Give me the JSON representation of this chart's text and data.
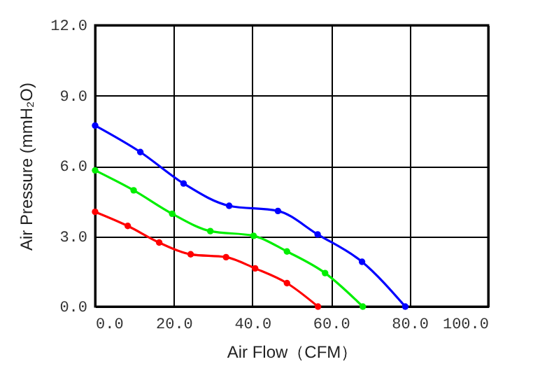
{
  "chart_data": {
    "type": "line",
    "xlabel": "Air Flow（CFM）",
    "ylabel": "Air Pressure (mmH₂O)",
    "xlim": [
      0,
      100
    ],
    "ylim": [
      0,
      12
    ],
    "xticks": [
      {
        "value": 0,
        "label": "0.0"
      },
      {
        "value": 20,
        "label": "20.0"
      },
      {
        "value": 40,
        "label": "40.0"
      },
      {
        "value": 60,
        "label": "60.0"
      },
      {
        "value": 80,
        "label": "80.0"
      },
      {
        "value": 100,
        "label": "100.0"
      }
    ],
    "yticks": [
      {
        "value": 0,
        "label": "0.0"
      },
      {
        "value": 3,
        "label": "3.0"
      },
      {
        "value": 6,
        "label": "6.0"
      },
      {
        "value": 9,
        "label": "9.0"
      },
      {
        "value": 12,
        "label": "12.0"
      }
    ],
    "grid": true,
    "marker": "circle",
    "line_style": "solid",
    "legend": false,
    "series": [
      {
        "color": "#0000ff",
        "x": [
          0,
          11.5,
          22.5,
          34.1,
          46.5,
          56.6,
          67.9,
          78.9
        ],
        "values": [
          7.72,
          6.59,
          5.25,
          4.3,
          4.08,
          3.08,
          1.91,
          0
        ]
      },
      {
        "color": "#00ee00",
        "x": [
          0,
          9.8,
          19.6,
          29.3,
          40.3,
          48.8,
          58.5,
          68.1
        ],
        "values": [
          5.81,
          4.96,
          3.96,
          3.22,
          3.02,
          2.35,
          1.43,
          0
        ]
      },
      {
        "color": "#ff0000",
        "x": [
          0,
          8.3,
          16.3,
          24.3,
          33.3,
          40.7,
          48.8,
          56.7
        ],
        "values": [
          4.04,
          3.44,
          2.73,
          2.23,
          2.11,
          1.63,
          1.0,
          0
        ]
      }
    ]
  }
}
